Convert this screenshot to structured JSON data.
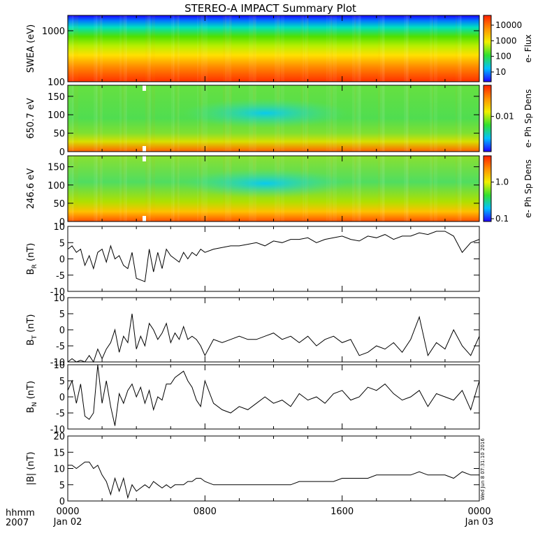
{
  "title": "STEREO-A IMPACT Summary Plot",
  "colors": {
    "axis": "#000000",
    "trace": "#000000"
  },
  "chart_data": [
    {
      "type": "heatmap",
      "id": "swea",
      "ylabel": "SWEA (eV)",
      "yscale": "log",
      "ylim": [
        100,
        2000
      ],
      "yticks": [
        "1000",
        "100"
      ],
      "cbar_label": "e- Flux",
      "cbar_scale": "log",
      "cbar_ticks": [
        "10000",
        "1000",
        "100",
        "10"
      ]
    },
    {
      "type": "heatmap",
      "id": "pad650",
      "ylabel": "650.7 eV",
      "ylim": [
        0,
        180
      ],
      "yticks": [
        "150",
        "100",
        "50",
        "0"
      ],
      "cbar_label": "e- Ph Sp Dens",
      "cbar_scale": "log",
      "cbar_ticks": [
        "0.01"
      ]
    },
    {
      "type": "heatmap",
      "id": "pad246",
      "ylabel": "246.6 eV",
      "ylim": [
        0,
        180
      ],
      "yticks": [
        "150",
        "100",
        "50",
        "0"
      ],
      "cbar_label": "e- Ph Sp Dens",
      "cbar_scale": "log",
      "cbar_ticks": [
        "1.0",
        "0.1"
      ]
    },
    {
      "type": "line",
      "id": "br",
      "ylabel_main": "B",
      "ylabel_sub": "R",
      "ylabel_unit": "(nT)",
      "ylim": [
        -10,
        10
      ],
      "yticks": [
        "10",
        "5",
        "0",
        "-5",
        "-10"
      ],
      "x_hours": [
        0,
        0.25,
        0.5,
        0.75,
        1,
        1.25,
        1.5,
        1.75,
        2,
        2.25,
        2.5,
        2.75,
        3,
        3.25,
        3.5,
        3.75,
        4,
        4.25,
        4.5,
        4.75,
        5,
        5.25,
        5.5,
        5.75,
        6,
        6.25,
        6.5,
        6.75,
        7,
        7.25,
        7.5,
        7.75,
        8,
        8.5,
        9,
        9.5,
        10,
        10.5,
        11,
        11.5,
        12,
        12.5,
        13,
        13.5,
        14,
        14.5,
        15,
        15.5,
        16,
        16.5,
        17,
        17.5,
        18,
        18.5,
        19,
        19.5,
        20,
        20.5,
        21,
        21.5,
        22,
        22.5,
        23,
        23.5,
        24
      ],
      "y": [
        3,
        4,
        2,
        3,
        -2,
        1,
        -3,
        2,
        3,
        -1,
        4,
        0,
        1,
        -2,
        -3,
        2,
        -6,
        -6.5,
        -7,
        3,
        -4,
        2,
        -3,
        3,
        1,
        0,
        -1,
        2,
        0,
        2,
        1,
        3,
        2,
        3,
        3.5,
        4,
        4,
        4.5,
        5,
        4,
        5.5,
        5,
        6,
        6,
        6.5,
        5,
        6,
        6.5,
        7,
        6,
        5.5,
        7,
        6.5,
        7.5,
        6,
        7,
        7,
        8,
        7.5,
        8.5,
        8.5,
        7,
        2,
        5,
        6
      ]
    },
    {
      "type": "line",
      "id": "bt",
      "ylabel_main": "B",
      "ylabel_sub": "T",
      "ylabel_unit": "(nT)",
      "ylim": [
        -10,
        10
      ],
      "yticks": [
        "10",
        "5",
        "0",
        "-5",
        "-10"
      ],
      "x_hours": [
        0,
        0.25,
        0.5,
        0.75,
        1,
        1.25,
        1.5,
        1.75,
        2,
        2.25,
        2.5,
        2.75,
        3,
        3.25,
        3.5,
        3.75,
        4,
        4.25,
        4.5,
        4.75,
        5,
        5.25,
        5.5,
        5.75,
        6,
        6.25,
        6.5,
        6.75,
        7,
        7.25,
        7.5,
        7.75,
        8,
        8.5,
        9,
        9.5,
        10,
        10.5,
        11,
        11.5,
        12,
        12.5,
        13,
        13.5,
        14,
        14.5,
        15,
        15.5,
        16,
        16.5,
        17,
        17.5,
        18,
        18.5,
        19,
        19.5,
        20,
        20.5,
        21,
        21.5,
        22,
        22.5,
        23,
        23.5,
        24
      ],
      "y": [
        -10,
        -9,
        -10,
        -9.5,
        -10,
        -8,
        -10,
        -6,
        -9,
        -6,
        -4,
        0,
        -7,
        -2,
        -4,
        5,
        -6,
        -2,
        -5,
        2,
        0,
        -3,
        -1,
        2,
        -4,
        -1,
        -3,
        1,
        -3,
        -2,
        -3,
        -5,
        -8,
        -3,
        -4,
        -3,
        -2,
        -3,
        -3,
        -2,
        -1,
        -3,
        -2,
        -4,
        -2,
        -5,
        -3,
        -2,
        -4,
        -3,
        -8,
        -7,
        -5,
        -6,
        -4,
        -7,
        -3,
        4,
        -8,
        -4,
        -6,
        0,
        -5,
        -8,
        -2
      ]
    },
    {
      "type": "line",
      "id": "bn",
      "ylabel_main": "B",
      "ylabel_sub": "N",
      "ylabel_unit": "(nT)",
      "ylim": [
        -10,
        10
      ],
      "yticks": [
        "10",
        "5",
        "0",
        "-5",
        "-10"
      ],
      "x_hours": [
        0,
        0.25,
        0.5,
        0.75,
        1,
        1.25,
        1.5,
        1.75,
        2,
        2.25,
        2.5,
        2.75,
        3,
        3.25,
        3.5,
        3.75,
        4,
        4.25,
        4.5,
        4.75,
        5,
        5.25,
        5.5,
        5.75,
        6,
        6.25,
        6.5,
        6.75,
        7,
        7.25,
        7.5,
        7.75,
        8,
        8.5,
        9,
        9.5,
        10,
        10.5,
        11,
        11.5,
        12,
        12.5,
        13,
        13.5,
        14,
        14.5,
        15,
        15.5,
        16,
        16.5,
        17,
        17.5,
        18,
        18.5,
        19,
        19.5,
        20,
        20.5,
        21,
        21.5,
        22,
        22.5,
        23,
        23.5,
        24
      ],
      "y": [
        2,
        5,
        -2,
        4,
        -6,
        -7,
        -5,
        10,
        -2,
        5,
        -3,
        -9,
        1,
        -2,
        2,
        4,
        0,
        3,
        -2,
        2,
        -4,
        0,
        -1,
        4,
        4,
        6,
        7,
        8,
        5,
        3,
        -1,
        -3,
        5,
        -2,
        -4,
        -5,
        -3,
        -4,
        -2,
        0,
        -2,
        -1,
        -3,
        1,
        -1,
        0,
        -2,
        1,
        2,
        -1,
        0,
        3,
        2,
        4,
        1,
        -1,
        0,
        2,
        -3,
        1,
        0,
        -1,
        2,
        -4,
        5
      ]
    },
    {
      "type": "line",
      "id": "bmag",
      "ylabel_main": "|B| (nT)",
      "ylim": [
        0,
        20
      ],
      "yticks": [
        "20",
        "15",
        "10",
        "5",
        "0"
      ],
      "x_hours": [
        0,
        0.25,
        0.5,
        0.75,
        1,
        1.25,
        1.5,
        1.75,
        2,
        2.25,
        2.5,
        2.75,
        3,
        3.25,
        3.5,
        3.75,
        4,
        4.25,
        4.5,
        4.75,
        5,
        5.25,
        5.5,
        5.75,
        6,
        6.25,
        6.5,
        6.75,
        7,
        7.25,
        7.5,
        7.75,
        8,
        8.5,
        9,
        9.5,
        10,
        10.5,
        11,
        11.5,
        12,
        12.5,
        13,
        13.5,
        14,
        14.5,
        15,
        15.5,
        16,
        16.5,
        17,
        17.5,
        18,
        18.5,
        19,
        19.5,
        20,
        20.5,
        21,
        21.5,
        22,
        22.5,
        23,
        23.5,
        24
      ],
      "y": [
        11,
        11,
        10,
        11,
        12,
        12,
        10,
        11,
        8,
        6,
        2,
        7,
        3,
        7,
        1,
        5,
        3,
        4,
        5,
        4,
        6,
        5,
        4,
        5,
        4,
        5,
        5,
        5,
        6,
        6,
        7,
        7,
        6,
        5,
        5,
        5,
        5,
        5,
        5,
        5,
        5,
        5,
        5,
        6,
        6,
        6,
        6,
        6,
        7,
        7,
        7,
        7,
        8,
        8,
        8,
        8,
        8,
        9,
        8,
        8,
        8,
        7,
        9,
        8,
        8
      ]
    }
  ],
  "xaxis": {
    "hour_ticks": [
      "0000",
      "0800",
      "1600",
      "0000"
    ],
    "tick_hours": [
      0,
      8,
      16,
      24
    ],
    "date_labels": [
      "Jan 02",
      "",
      "",
      "Jan 03"
    ],
    "corner_top": "hhmm",
    "corner_bottom": "2007"
  },
  "timestamp": "Wed Jun 8 07:31:10 2016"
}
